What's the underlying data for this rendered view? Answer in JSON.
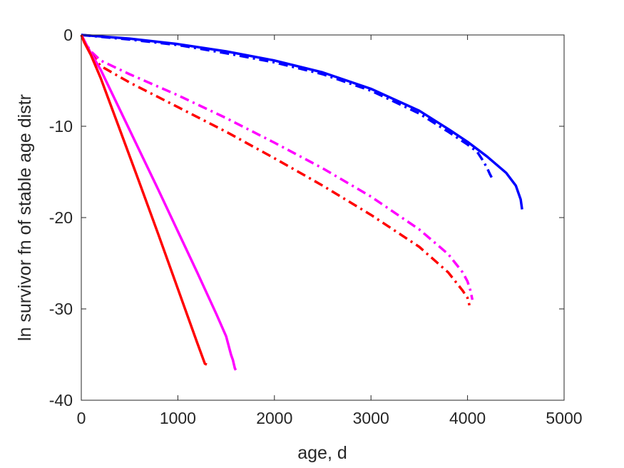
{
  "chart_data": {
    "type": "line",
    "title": "",
    "xlabel": "age, d",
    "ylabel": "ln survivor fn of stable age distr",
    "xlim": [
      0,
      5000
    ],
    "ylim": [
      -40,
      0
    ],
    "xticks": [
      0,
      1000,
      2000,
      3000,
      4000,
      5000
    ],
    "yticks": [
      0,
      -10,
      -20,
      -30,
      -40
    ],
    "xtick_labels": [
      "0",
      "1000",
      "2000",
      "3000",
      "4000",
      "5000"
    ],
    "ytick_labels": [
      "0",
      "-10",
      "-20",
      "-30",
      "-40"
    ],
    "grid": false,
    "legend": "none",
    "series": [
      {
        "color": "#0000ff",
        "style": "solid",
        "x": [
          0,
          500,
          1000,
          1500,
          2000,
          2500,
          3000,
          3500,
          3800,
          4000,
          4200,
          4400,
          4500,
          4550,
          4565
        ],
        "y": [
          0,
          -0.4,
          -1.0,
          -1.8,
          -2.8,
          -4.1,
          -5.9,
          -8.3,
          -10.3,
          -11.7,
          -13.3,
          -15.1,
          -16.5,
          -18.0,
          -19.1
        ]
      },
      {
        "color": "#0000ff",
        "style": "dashdot",
        "x": [
          0,
          500,
          1000,
          1500,
          2000,
          2500,
          3000,
          3500,
          3800,
          4000,
          4100,
          4150,
          4200,
          4230,
          4250
        ],
        "y": [
          0,
          -0.5,
          -1.1,
          -2.0,
          -3.0,
          -4.3,
          -6.1,
          -8.6,
          -10.6,
          -12.0,
          -12.8,
          -13.6,
          -14.5,
          -15.2,
          -15.6
        ]
      },
      {
        "color": "#ff00ff",
        "style": "dashdot",
        "x": [
          0,
          50,
          100,
          200,
          500,
          1000,
          1500,
          2000,
          2500,
          3000,
          3500,
          3800,
          3950,
          4000,
          4030,
          4050
        ],
        "y": [
          0,
          -1.0,
          -1.8,
          -2.8,
          -4.3,
          -6.6,
          -9.1,
          -11.8,
          -14.6,
          -17.7,
          -21.3,
          -24.0,
          -26.0,
          -27.0,
          -28.0,
          -29.0
        ]
      },
      {
        "color": "#ff0000",
        "style": "dashdot",
        "x": [
          0,
          50,
          100,
          200,
          500,
          1000,
          1500,
          2000,
          2500,
          3000,
          3500,
          3800,
          3950,
          4000,
          4020
        ],
        "y": [
          0,
          -1.1,
          -2.0,
          -3.4,
          -5.2,
          -7.9,
          -10.6,
          -13.5,
          -16.5,
          -19.7,
          -23.2,
          -26.0,
          -28.0,
          -28.8,
          -29.6
        ]
      },
      {
        "color": "#ff00ff",
        "style": "solid",
        "x": [
          0,
          30,
          60,
          100,
          200,
          400,
          600,
          800,
          1000,
          1200,
          1400,
          1500,
          1550,
          1570,
          1590,
          1600
        ],
        "y": [
          0,
          -0.6,
          -1.2,
          -2.0,
          -3.8,
          -8.2,
          -12.6,
          -17.0,
          -21.5,
          -26.0,
          -30.6,
          -33.0,
          -35.0,
          -35.6,
          -36.5,
          -36.7
        ]
      },
      {
        "color": "#ff0000",
        "style": "solid",
        "x": [
          0,
          30,
          60,
          100,
          200,
          400,
          600,
          800,
          1000,
          1200,
          1280,
          1300
        ],
        "y": [
          0,
          -0.8,
          -1.4,
          -2.2,
          -4.7,
          -10.4,
          -16.1,
          -21.9,
          -27.8,
          -33.7,
          -36.0,
          -36.1
        ]
      }
    ]
  }
}
